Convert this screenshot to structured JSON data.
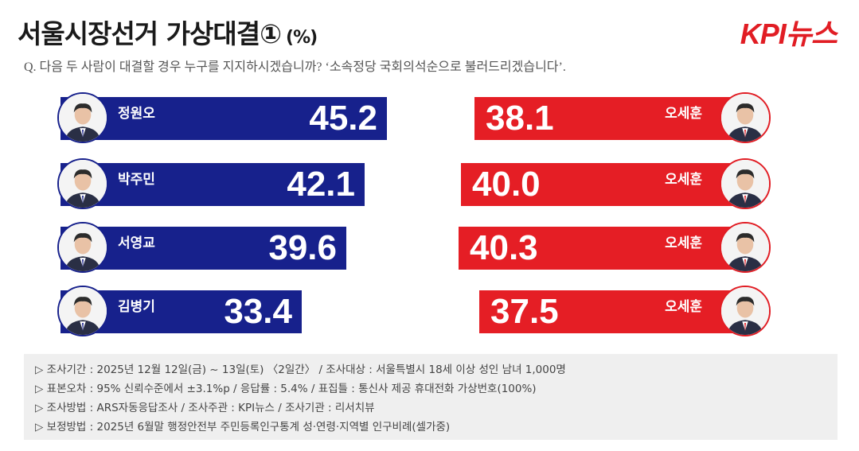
{
  "title": "서울시장선거 가상대결①",
  "title_unit": "(%)",
  "logo": "KPI뉴스",
  "question": "Q. 다음 두 사람이 대결할 경우 누구를 지지하시겠습니까? ‘소속정당 국회의석순으로 불러드리겠습니다’.",
  "chart_data": {
    "type": "bar",
    "title": "서울시장선거 가상대결①",
    "unit": "%",
    "categories": [
      "정원오 vs 오세훈",
      "박주민 vs 오세훈",
      "서영교 vs 오세훈",
      "김병기 vs 오세훈"
    ],
    "series": [
      {
        "name": "blue_candidates",
        "labels": [
          "정원오",
          "박주민",
          "서영교",
          "김병기"
        ],
        "values": [
          45.2,
          42.1,
          39.6,
          33.4
        ],
        "display": [
          "45.2",
          "42.1",
          "39.6",
          "33.4"
        ],
        "color": "#17218c"
      },
      {
        "name": "red_candidate",
        "labels": [
          "오세훈",
          "오세훈",
          "오세훈",
          "오세훈"
        ],
        "values": [
          38.1,
          40.0,
          40.3,
          37.5
        ],
        "display": [
          "38.1",
          "40.0",
          "40.3",
          "37.5"
        ],
        "color": "#e51e25"
      }
    ]
  },
  "footer": {
    "lines": [
      "▷ 조사기간 : 2025년 12월 12일(금) ~ 13일(토) 〈2일간〉 / 조사대상 : 서울특별시 18세 이상 성인 남녀 1,000명",
      "▷ 표본오차 : 95% 신뢰수준에서 ±3.1%p / 응답률 : 5.4% / 표집틀 : 통신사 제공 휴대전화 가상번호(100%)",
      "▷ 조사방법 : ARS자동응답조사 / 조사주관 : KPI뉴스 / 조사기관 : 리서치뷰",
      "▷ 보정방법 : 2025년 6월말 행정안전부 주민등록인구통계 성·연령·지역별 인구비례(셀가중)"
    ]
  },
  "colors": {
    "blue": "#17218c",
    "red": "#e51e25",
    "footer_bg": "#efefef"
  }
}
